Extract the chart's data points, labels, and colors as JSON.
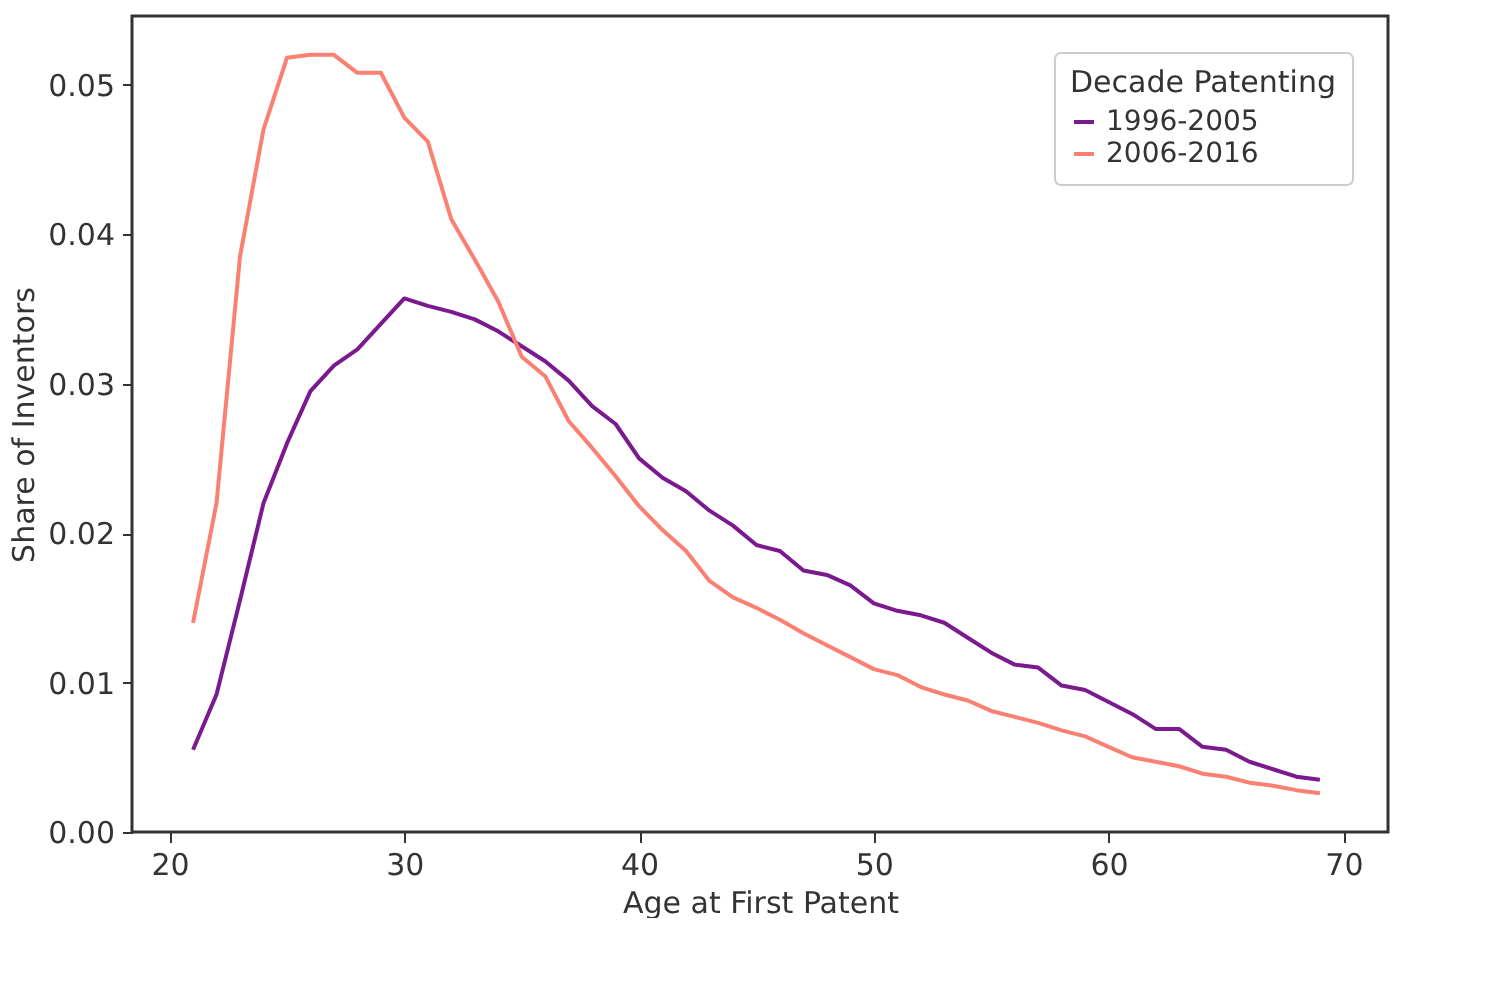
{
  "chart_data": {
    "type": "line",
    "xlabel": "Age at First Patent",
    "ylabel": "Share of Inventors",
    "legend_title": "Decade Patenting",
    "legend": "top right",
    "grid": false,
    "line_style": "solid",
    "marker": "none",
    "x": [
      21,
      22,
      23,
      24,
      25,
      26,
      27,
      28,
      29,
      30,
      31,
      32,
      33,
      34,
      35,
      36,
      37,
      38,
      39,
      40,
      41,
      42,
      43,
      44,
      45,
      46,
      47,
      48,
      49,
      50,
      51,
      52,
      53,
      54,
      55,
      56,
      57,
      58,
      59,
      60,
      61,
      62,
      63,
      64,
      65,
      66,
      67,
      68,
      69
    ],
    "xlim": [
      18.4,
      71.9
    ],
    "xticks": [
      20,
      30,
      40,
      50,
      60,
      70
    ],
    "ylim": [
      0,
      0.0546
    ],
    "yticks": [
      {
        "value": 0,
        "label": "0.00"
      },
      0.01,
      0.02,
      0.03,
      0.04,
      0.05
    ],
    "series": [
      {
        "name": "1996-2005",
        "color": "#7b1a8f",
        "values": [
          0.0055,
          0.0092,
          0.0155,
          0.022,
          0.026,
          0.0295,
          0.0312,
          0.0323,
          0.034,
          0.0357,
          0.0352,
          0.0348,
          0.0343,
          0.0335,
          0.0325,
          0.0315,
          0.0302,
          0.0285,
          0.0273,
          0.025,
          0.0237,
          0.0228,
          0.0215,
          0.0205,
          0.0192,
          0.0188,
          0.0175,
          0.0172,
          0.0165,
          0.0153,
          0.0148,
          0.0145,
          0.014,
          0.013,
          0.012,
          0.0112,
          0.011,
          0.0098,
          0.0095,
          0.0087,
          0.0079,
          0.0069,
          0.0069,
          0.0057,
          0.0055,
          0.0047,
          0.0042,
          0.0037,
          0.0035
        ]
      },
      {
        "name": "2006-2016",
        "color": "#fa8072",
        "values": [
          0.014,
          0.022,
          0.0385,
          0.047,
          0.0518,
          0.052,
          0.052,
          0.0508,
          0.0508,
          0.0478,
          0.0462,
          0.041,
          0.0383,
          0.0355,
          0.0318,
          0.0305,
          0.0275,
          0.0257,
          0.0238,
          0.0218,
          0.0202,
          0.0188,
          0.0168,
          0.0157,
          0.015,
          0.0142,
          0.0133,
          0.0125,
          0.0117,
          0.0109,
          0.0105,
          0.0097,
          0.0092,
          0.0088,
          0.0081,
          0.0077,
          0.0073,
          0.0068,
          0.0064,
          0.0057,
          0.005,
          0.0047,
          0.0044,
          0.0039,
          0.0037,
          0.0033,
          0.0031,
          0.0028,
          0.0026
        ]
      }
    ]
  }
}
